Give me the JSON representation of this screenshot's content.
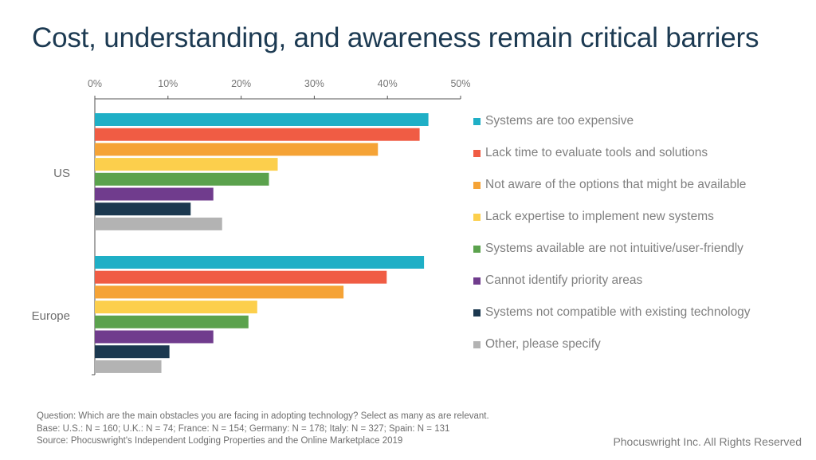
{
  "title": "Cost, understanding, and awareness remain critical barriers",
  "chart_data": {
    "type": "bar",
    "orientation": "horizontal",
    "title": "Cost, understanding, and awareness remain critical barriers",
    "xlabel": "",
    "ylabel": "",
    "xlim": [
      0,
      50
    ],
    "x_ticks": [
      "0%",
      "10%",
      "20%",
      "30%",
      "40%",
      "50%"
    ],
    "x_tick_values": [
      0,
      10,
      20,
      30,
      40,
      50
    ],
    "x_axis_position": "top",
    "grid": false,
    "legend_position": "right",
    "categories": [
      "US",
      "Europe"
    ],
    "series": [
      {
        "name": "Systems are too expensive",
        "color": "#1fafc6",
        "values": [
          45.6,
          45.0
        ]
      },
      {
        "name": "Lack time to evaluate tools and solutions",
        "color": "#f05c44",
        "values": [
          44.4,
          39.9
        ]
      },
      {
        "name": "Not aware of the options that might be available",
        "color": "#f5a336",
        "values": [
          38.7,
          34.0
        ]
      },
      {
        "name": "Lack expertise to implement new systems",
        "color": "#fccf4c",
        "values": [
          25.0,
          22.2
        ]
      },
      {
        "name": "Systems available are not intuitive/user-friendly",
        "color": "#5ba24d",
        "values": [
          23.8,
          21.0
        ]
      },
      {
        "name": "Cannot identify priority areas",
        "color": "#703c8d",
        "values": [
          16.2,
          16.2
        ]
      },
      {
        "name": "Systems not compatible with existing technology",
        "color": "#1b384f",
        "values": [
          13.1,
          10.2
        ]
      },
      {
        "name": "Other, please specify",
        "color": "#b3b3b3",
        "values": [
          17.4,
          9.1
        ]
      }
    ]
  },
  "footnotes": [
    "Question: Which are the main obstacles you are facing in adopting technology? Select as many as are relevant.",
    "Base: U.S.: N = 160; U.K.: N = 74; France: N = 154; Germany: N = 178; Italy: N = 327; Spain: N = 131",
    "Source: Phocuswright's Independent Lodging Properties and the Online Marketplace 2019"
  ],
  "copyright": "Phocuswright Inc. All Rights Reserved"
}
